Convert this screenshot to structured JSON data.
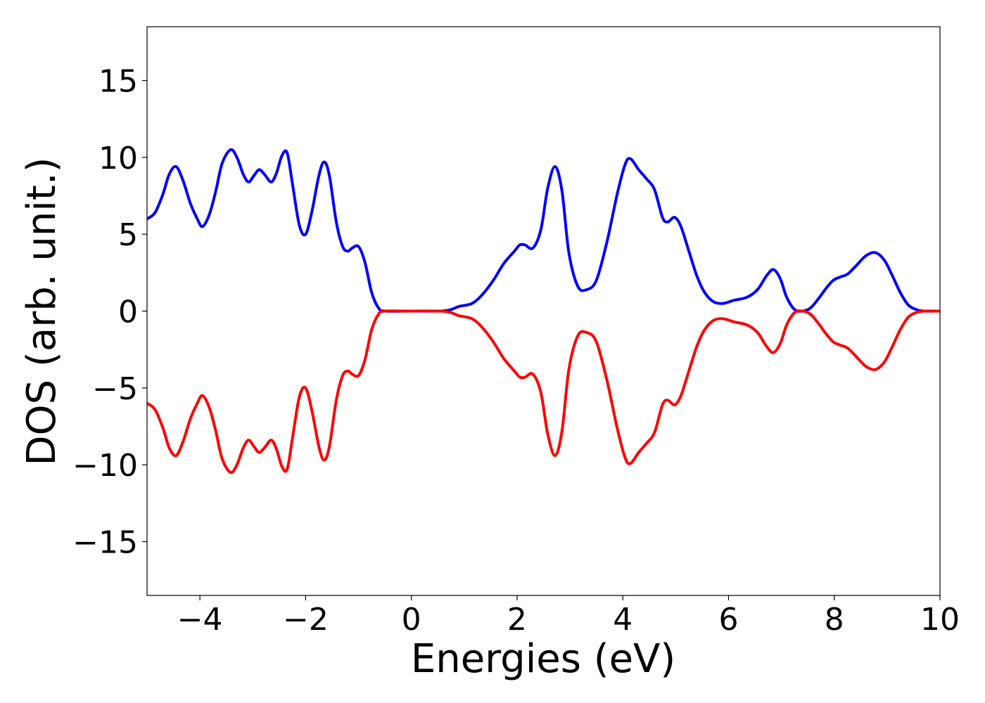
{
  "chart_data": {
    "type": "line",
    "xlabel": "Energies (eV)",
    "ylabel": "DOS (arb. unit.)",
    "xlim": [
      -5,
      10
    ],
    "ylim": [
      -18.5,
      18.5
    ],
    "xticks": [
      -4,
      -2,
      0,
      2,
      4,
      6,
      8,
      10
    ],
    "xtick_labels": [
      "−4",
      "−2",
      "0",
      "2",
      "4",
      "6",
      "8",
      "10"
    ],
    "yticks": [
      -15,
      -10,
      -5,
      0,
      5,
      10,
      15
    ],
    "ytick_labels": [
      "−15",
      "−10",
      "−5",
      "0",
      "5",
      "10",
      "15"
    ],
    "grid": false,
    "series": [
      {
        "color": "#0000ff",
        "points": [
          [
            -5.0,
            6.0
          ],
          [
            -4.85,
            6.4
          ],
          [
            -4.7,
            7.6
          ],
          [
            -4.58,
            8.9
          ],
          [
            -4.45,
            9.4
          ],
          [
            -4.32,
            8.5
          ],
          [
            -4.18,
            7.0
          ],
          [
            -4.05,
            6.0
          ],
          [
            -3.95,
            5.5
          ],
          [
            -3.82,
            6.3
          ],
          [
            -3.7,
            7.8
          ],
          [
            -3.58,
            9.6
          ],
          [
            -3.42,
            10.5
          ],
          [
            -3.3,
            10.0
          ],
          [
            -3.18,
            8.9
          ],
          [
            -3.08,
            8.4
          ],
          [
            -2.98,
            8.8
          ],
          [
            -2.88,
            9.2
          ],
          [
            -2.78,
            8.9
          ],
          [
            -2.65,
            8.4
          ],
          [
            -2.55,
            9.0
          ],
          [
            -2.45,
            10.1
          ],
          [
            -2.35,
            10.3
          ],
          [
            -2.25,
            8.3
          ],
          [
            -2.12,
            5.6
          ],
          [
            -2.0,
            5.0
          ],
          [
            -1.88,
            6.5
          ],
          [
            -1.75,
            8.8
          ],
          [
            -1.65,
            9.7
          ],
          [
            -1.55,
            8.8
          ],
          [
            -1.42,
            5.8
          ],
          [
            -1.3,
            4.2
          ],
          [
            -1.2,
            3.9
          ],
          [
            -1.12,
            4.1
          ],
          [
            -1.0,
            4.2
          ],
          [
            -0.88,
            3.2
          ],
          [
            -0.75,
            1.2
          ],
          [
            -0.62,
            0.2
          ],
          [
            -0.5,
            0.0
          ],
          [
            0.0,
            0.0
          ],
          [
            0.55,
            0.0
          ],
          [
            0.75,
            0.1
          ],
          [
            0.9,
            0.3
          ],
          [
            1.15,
            0.5
          ],
          [
            1.35,
            1.1
          ],
          [
            1.55,
            2.0
          ],
          [
            1.75,
            3.1
          ],
          [
            1.95,
            3.9
          ],
          [
            2.05,
            4.3
          ],
          [
            2.15,
            4.3
          ],
          [
            2.3,
            4.1
          ],
          [
            2.45,
            5.3
          ],
          [
            2.58,
            8.0
          ],
          [
            2.72,
            9.4
          ],
          [
            2.85,
            7.8
          ],
          [
            2.98,
            3.8
          ],
          [
            3.15,
            1.6
          ],
          [
            3.32,
            1.4
          ],
          [
            3.5,
            2.0
          ],
          [
            3.7,
            4.5
          ],
          [
            3.9,
            7.7
          ],
          [
            4.05,
            9.6
          ],
          [
            4.15,
            9.9
          ],
          [
            4.3,
            9.2
          ],
          [
            4.45,
            8.6
          ],
          [
            4.6,
            7.9
          ],
          [
            4.75,
            6.1
          ],
          [
            4.85,
            5.8
          ],
          [
            4.98,
            6.1
          ],
          [
            5.1,
            5.5
          ],
          [
            5.25,
            3.9
          ],
          [
            5.4,
            2.3
          ],
          [
            5.55,
            1.2
          ],
          [
            5.72,
            0.6
          ],
          [
            5.9,
            0.5
          ],
          [
            6.1,
            0.7
          ],
          [
            6.35,
            0.9
          ],
          [
            6.55,
            1.4
          ],
          [
            6.72,
            2.3
          ],
          [
            6.85,
            2.7
          ],
          [
            6.98,
            2.1
          ],
          [
            7.1,
            0.9
          ],
          [
            7.25,
            0.1
          ],
          [
            7.4,
            0.0
          ],
          [
            7.55,
            0.2
          ],
          [
            7.7,
            0.8
          ],
          [
            7.85,
            1.5
          ],
          [
            7.98,
            2.0
          ],
          [
            8.1,
            2.2
          ],
          [
            8.25,
            2.4
          ],
          [
            8.4,
            2.9
          ],
          [
            8.6,
            3.6
          ],
          [
            8.78,
            3.8
          ],
          [
            8.95,
            3.3
          ],
          [
            9.1,
            2.3
          ],
          [
            9.25,
            1.2
          ],
          [
            9.4,
            0.4
          ],
          [
            9.55,
            0.1
          ],
          [
            9.7,
            0.0
          ],
          [
            10.0,
            0.0
          ]
        ]
      },
      {
        "color": "#ff0000",
        "points": [
          [
            -5.0,
            -6.0
          ],
          [
            -4.85,
            -6.4
          ],
          [
            -4.7,
            -7.6
          ],
          [
            -4.58,
            -8.9
          ],
          [
            -4.45,
            -9.4
          ],
          [
            -4.32,
            -8.5
          ],
          [
            -4.18,
            -7.0
          ],
          [
            -4.05,
            -6.0
          ],
          [
            -3.95,
            -5.5
          ],
          [
            -3.82,
            -6.3
          ],
          [
            -3.7,
            -7.8
          ],
          [
            -3.58,
            -9.6
          ],
          [
            -3.42,
            -10.5
          ],
          [
            -3.3,
            -10.0
          ],
          [
            -3.18,
            -8.9
          ],
          [
            -3.08,
            -8.4
          ],
          [
            -2.98,
            -8.8
          ],
          [
            -2.88,
            -9.2
          ],
          [
            -2.78,
            -8.9
          ],
          [
            -2.65,
            -8.4
          ],
          [
            -2.55,
            -9.0
          ],
          [
            -2.45,
            -10.1
          ],
          [
            -2.35,
            -10.3
          ],
          [
            -2.25,
            -8.3
          ],
          [
            -2.12,
            -5.6
          ],
          [
            -2.0,
            -5.0
          ],
          [
            -1.88,
            -6.5
          ],
          [
            -1.75,
            -8.8
          ],
          [
            -1.65,
            -9.7
          ],
          [
            -1.55,
            -8.8
          ],
          [
            -1.42,
            -5.8
          ],
          [
            -1.3,
            -4.2
          ],
          [
            -1.2,
            -3.9
          ],
          [
            -1.12,
            -4.1
          ],
          [
            -1.0,
            -4.2
          ],
          [
            -0.88,
            -3.2
          ],
          [
            -0.75,
            -1.2
          ],
          [
            -0.62,
            -0.2
          ],
          [
            -0.5,
            0.0
          ],
          [
            0.0,
            0.0
          ],
          [
            0.55,
            0.0
          ],
          [
            0.75,
            -0.1
          ],
          [
            0.9,
            -0.3
          ],
          [
            1.15,
            -0.5
          ],
          [
            1.35,
            -1.1
          ],
          [
            1.55,
            -2.0
          ],
          [
            1.75,
            -3.1
          ],
          [
            1.95,
            -3.9
          ],
          [
            2.05,
            -4.3
          ],
          [
            2.15,
            -4.3
          ],
          [
            2.3,
            -4.1
          ],
          [
            2.45,
            -5.3
          ],
          [
            2.58,
            -8.0
          ],
          [
            2.72,
            -9.4
          ],
          [
            2.85,
            -7.8
          ],
          [
            2.98,
            -3.8
          ],
          [
            3.15,
            -1.6
          ],
          [
            3.32,
            -1.4
          ],
          [
            3.5,
            -2.0
          ],
          [
            3.7,
            -4.5
          ],
          [
            3.9,
            -7.7
          ],
          [
            4.05,
            -9.6
          ],
          [
            4.15,
            -9.9
          ],
          [
            4.3,
            -9.2
          ],
          [
            4.45,
            -8.6
          ],
          [
            4.6,
            -7.9
          ],
          [
            4.75,
            -6.1
          ],
          [
            4.85,
            -5.8
          ],
          [
            4.98,
            -6.1
          ],
          [
            5.1,
            -5.5
          ],
          [
            5.25,
            -3.9
          ],
          [
            5.4,
            -2.3
          ],
          [
            5.55,
            -1.2
          ],
          [
            5.72,
            -0.6
          ],
          [
            5.9,
            -0.5
          ],
          [
            6.1,
            -0.7
          ],
          [
            6.35,
            -0.9
          ],
          [
            6.55,
            -1.4
          ],
          [
            6.72,
            -2.3
          ],
          [
            6.85,
            -2.7
          ],
          [
            6.98,
            -2.1
          ],
          [
            7.1,
            -0.9
          ],
          [
            7.25,
            -0.1
          ],
          [
            7.4,
            0.0
          ],
          [
            7.55,
            -0.2
          ],
          [
            7.7,
            -0.8
          ],
          [
            7.85,
            -1.5
          ],
          [
            7.98,
            -2.0
          ],
          [
            8.1,
            -2.2
          ],
          [
            8.25,
            -2.4
          ],
          [
            8.4,
            -2.9
          ],
          [
            8.6,
            -3.6
          ],
          [
            8.78,
            -3.8
          ],
          [
            8.95,
            -3.3
          ],
          [
            9.1,
            -2.3
          ],
          [
            9.25,
            -1.2
          ],
          [
            9.4,
            -0.4
          ],
          [
            9.55,
            -0.1
          ],
          [
            9.7,
            0.0
          ],
          [
            10.0,
            0.0
          ]
        ]
      }
    ]
  }
}
